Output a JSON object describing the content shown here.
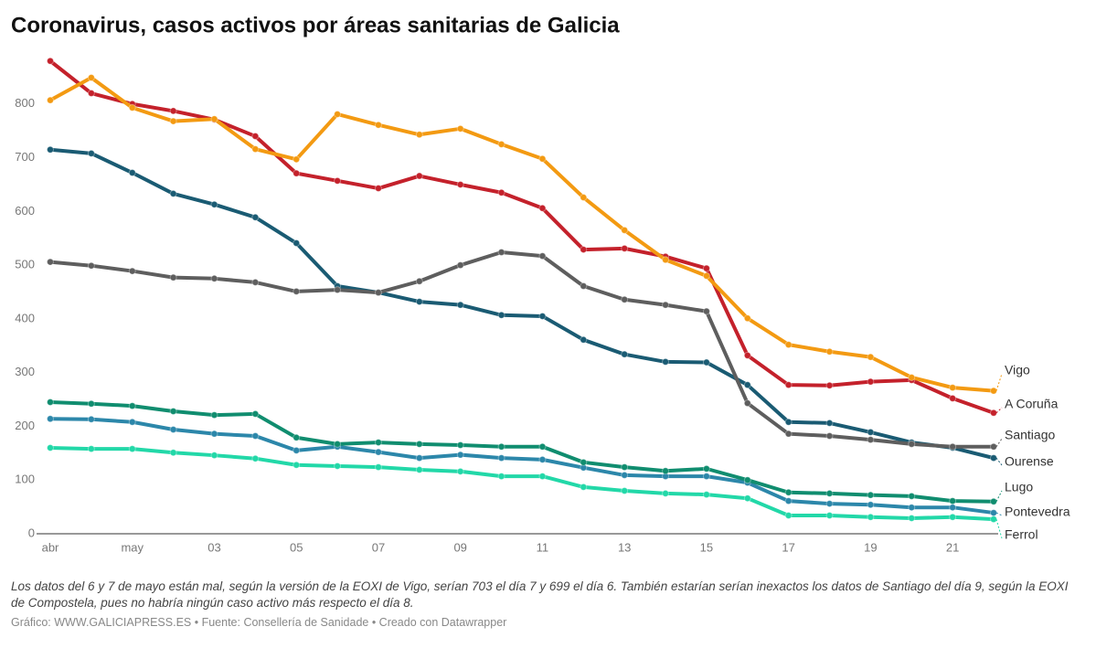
{
  "chart_data": {
    "type": "line",
    "title": "Coronavirus, casos activos por áreas sanitarias de Galicia",
    "note": "Los datos del 6 y 7 de mayo están mal, según la versión de la EOXI de Vigo, serían 703 el día 7 y 699 el día 6. También estarían serían inexactos los datos de Santiago del día 9, según la EOXI de Compostela, pues no habría ningún caso activo más respecto el día 8.",
    "source": "Gráfico: WWW.GALICIAPRESS.ES • Fuente: Consellería de Sanidade • Creado con Datawrapper",
    "categories": [
      "abr",
      null,
      "may",
      null,
      "03",
      null,
      "05",
      null,
      "07",
      null,
      "09",
      null,
      "11",
      null,
      "13",
      null,
      "15",
      null,
      "17",
      null,
      "19",
      null,
      "21",
      null
    ],
    "ylim": [
      0,
      900
    ],
    "yticks": [
      0,
      100,
      200,
      300,
      400,
      500,
      600,
      700,
      800
    ],
    "grid": false,
    "series": [
      {
        "name": "Vigo",
        "color": "#f39a12",
        "values": [
          807,
          849,
          793,
          768,
          772,
          716,
          697,
          781,
          761,
          743,
          754,
          725,
          698,
          626,
          565,
          510,
          480,
          401,
          352,
          339,
          329,
          291,
          272,
          266
        ]
      },
      {
        "name": "A Coruña",
        "color": "#c4212b",
        "values": [
          880,
          820,
          800,
          787,
          771,
          740,
          671,
          657,
          643,
          666,
          650,
          635,
          606,
          529,
          531,
          516,
          494,
          332,
          277,
          276,
          283,
          286,
          252,
          225
        ]
      },
      {
        "name": "Santiago",
        "color": "#5e5e5e",
        "values": [
          506,
          499,
          489,
          477,
          475,
          468,
          451,
          454,
          449,
          470,
          500,
          524,
          517,
          461,
          436,
          426,
          414,
          243,
          186,
          182,
          175,
          167,
          162,
          162
        ]
      },
      {
        "name": "Ourense",
        "color": "#1a5b73",
        "values": [
          715,
          708,
          672,
          633,
          613,
          589,
          541,
          461,
          449,
          432,
          426,
          407,
          405,
          361,
          334,
          320,
          319,
          277,
          208,
          206,
          189,
          170,
          160,
          141
        ]
      },
      {
        "name": "Lugo",
        "color": "#108d6f",
        "values": [
          245,
          242,
          238,
          228,
          221,
          223,
          179,
          167,
          170,
          167,
          165,
          162,
          162,
          133,
          124,
          117,
          121,
          100,
          77,
          75,
          72,
          70,
          61,
          60
        ]
      },
      {
        "name": "Pontevedra",
        "color": "#2c87aa",
        "values": [
          214,
          213,
          208,
          194,
          186,
          182,
          155,
          162,
          152,
          141,
          147,
          141,
          138,
          123,
          109,
          107,
          107,
          95,
          61,
          56,
          54,
          49,
          49,
          39
        ]
      },
      {
        "name": "Ferrol",
        "color": "#22d8a8",
        "values": [
          160,
          158,
          158,
          151,
          146,
          140,
          128,
          126,
          124,
          119,
          116,
          107,
          107,
          87,
          80,
          75,
          73,
          66,
          34,
          34,
          31,
          29,
          31,
          27
        ]
      }
    ]
  }
}
